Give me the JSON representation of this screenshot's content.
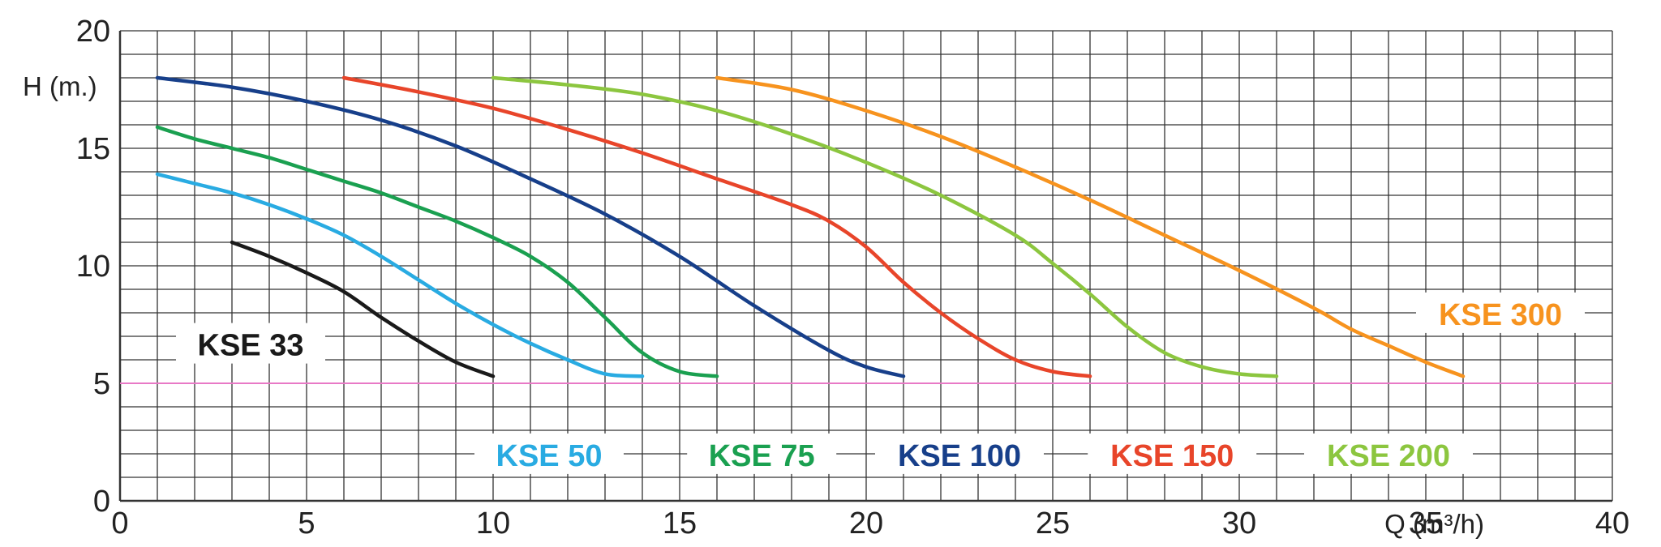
{
  "chart_data": {
    "type": "line",
    "title": "",
    "xlabel": "Q (m³/h)",
    "ylabel": "H (m.)",
    "xlim": [
      0,
      40
    ],
    "ylim": [
      0,
      20
    ],
    "x_ticks": [
      "0",
      "5",
      "10",
      "15",
      "20",
      "25",
      "30",
      "35",
      "40"
    ],
    "y_ticks": [
      "0",
      "5",
      "10",
      "15",
      "20"
    ],
    "grid": true,
    "reference_line": {
      "y": 5,
      "color": "#e879c6"
    },
    "series": [
      {
        "name": "KSE 33",
        "color": "#1a1a1a",
        "points": [
          [
            3,
            11
          ],
          [
            4,
            10.4
          ],
          [
            5,
            9.7
          ],
          [
            6,
            8.9
          ],
          [
            7,
            7.8
          ],
          [
            8,
            6.8
          ],
          [
            9,
            5.9
          ],
          [
            10,
            5.3
          ]
        ]
      },
      {
        "name": "KSE 50",
        "color": "#29abe2",
        "points": [
          [
            1,
            13.9
          ],
          [
            2,
            13.5
          ],
          [
            3,
            13.1
          ],
          [
            4,
            12.6
          ],
          [
            5,
            12
          ],
          [
            6,
            11.3
          ],
          [
            7,
            10.4
          ],
          [
            8,
            9.4
          ],
          [
            9,
            8.4
          ],
          [
            10,
            7.5
          ],
          [
            11,
            6.7
          ],
          [
            12,
            6
          ],
          [
            13,
            5.4
          ],
          [
            14,
            5.3
          ]
        ]
      },
      {
        "name": "KSE 75",
        "color": "#1aa050",
        "points": [
          [
            1,
            15.9
          ],
          [
            2,
            15.4
          ],
          [
            3,
            15
          ],
          [
            4,
            14.6
          ],
          [
            5,
            14.1
          ],
          [
            6,
            13.6
          ],
          [
            7,
            13.1
          ],
          [
            8,
            12.5
          ],
          [
            9,
            11.9
          ],
          [
            10,
            11.2
          ],
          [
            11,
            10.4
          ],
          [
            12,
            9.3
          ],
          [
            13,
            7.8
          ],
          [
            14,
            6.3
          ],
          [
            15,
            5.5
          ],
          [
            16,
            5.3
          ]
        ]
      },
      {
        "name": "KSE 100",
        "color": "#173f8a",
        "points": [
          [
            1,
            18
          ],
          [
            3,
            17.6
          ],
          [
            5,
            17
          ],
          [
            7,
            16.2
          ],
          [
            9,
            15.1
          ],
          [
            11,
            13.7
          ],
          [
            13,
            12.2
          ],
          [
            15,
            10.4
          ],
          [
            17,
            8.3
          ],
          [
            19,
            6.4
          ],
          [
            20,
            5.7
          ],
          [
            21,
            5.3
          ]
        ]
      },
      {
        "name": "KSE 150",
        "color": "#e8452a",
        "points": [
          [
            6,
            18
          ],
          [
            8,
            17.4
          ],
          [
            10,
            16.7
          ],
          [
            12,
            15.8
          ],
          [
            14,
            14.8
          ],
          [
            16,
            13.7
          ],
          [
            18,
            12.6
          ],
          [
            19,
            11.9
          ],
          [
            20,
            10.8
          ],
          [
            21,
            9.3
          ],
          [
            22,
            8
          ],
          [
            23,
            6.9
          ],
          [
            24,
            6
          ],
          [
            25,
            5.5
          ],
          [
            26,
            5.3
          ]
        ]
      },
      {
        "name": "KSE 200",
        "color": "#8cc63f",
        "points": [
          [
            10,
            18
          ],
          [
            12,
            17.7
          ],
          [
            14,
            17.3
          ],
          [
            16,
            16.6
          ],
          [
            18,
            15.6
          ],
          [
            20,
            14.4
          ],
          [
            22,
            13
          ],
          [
            24,
            11.3
          ],
          [
            25,
            10.1
          ],
          [
            26,
            8.8
          ],
          [
            27,
            7.4
          ],
          [
            28,
            6.3
          ],
          [
            29,
            5.7
          ],
          [
            30,
            5.4
          ],
          [
            31,
            5.3
          ]
        ]
      },
      {
        "name": "KSE 300",
        "color": "#f7931e",
        "points": [
          [
            16,
            18
          ],
          [
            18,
            17.5
          ],
          [
            20,
            16.6
          ],
          [
            22,
            15.5
          ],
          [
            24,
            14.2
          ],
          [
            26,
            12.8
          ],
          [
            28,
            11.3
          ],
          [
            30,
            9.8
          ],
          [
            32,
            8.2
          ],
          [
            33,
            7.3
          ],
          [
            34,
            6.6
          ],
          [
            35,
            5.9
          ],
          [
            36,
            5.3
          ]
        ]
      }
    ],
    "labels": [
      {
        "text": "KSE 33",
        "color": "#1a1a1a",
        "at": [
          3.5,
          6.6
        ]
      },
      {
        "text": "KSE 50",
        "color": "#29abe2",
        "at": [
          11.5,
          1.9
        ]
      },
      {
        "text": "KSE 75",
        "color": "#1aa050",
        "at": [
          17.2,
          1.9
        ]
      },
      {
        "text": "KSE 100",
        "color": "#173f8a",
        "at": [
          22.5,
          1.9
        ]
      },
      {
        "text": "KSE 150",
        "color": "#e8452a",
        "at": [
          28.2,
          1.9
        ]
      },
      {
        "text": "KSE 200",
        "color": "#8cc63f",
        "at": [
          34,
          1.9
        ]
      },
      {
        "text": "KSE 300",
        "color": "#f7931e",
        "at": [
          37,
          7.9
        ]
      }
    ]
  }
}
